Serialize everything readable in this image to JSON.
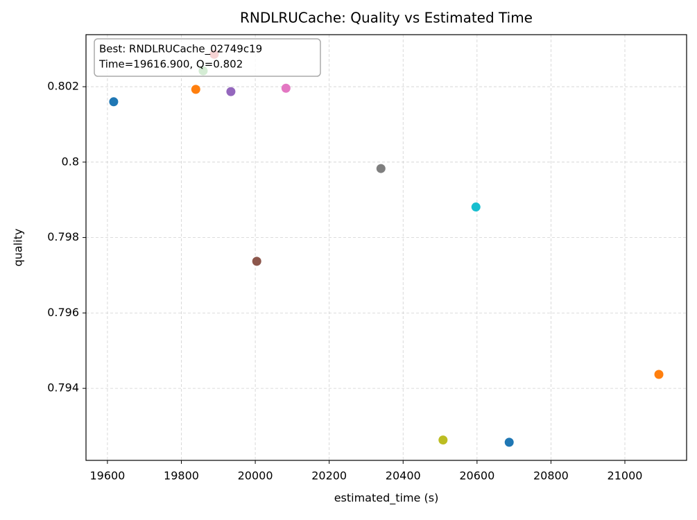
{
  "chart_data": {
    "type": "scatter",
    "title": "RNDLRUCache: Quality vs Estimated Time",
    "x_label": "estimated_time (s)",
    "y_label": "quality",
    "x": [
      19616.9,
      19839,
      19859,
      19889,
      19934,
      20004,
      20083,
      20340,
      20508,
      20597,
      20687,
      21092
    ],
    "y": [
      0.8016,
      0.80193,
      0.80242,
      0.80286,
      0.80187,
      0.79737,
      0.80196,
      0.79983,
      0.79263,
      0.79881,
      0.79257,
      0.79437
    ],
    "colors": [
      "#1f77b4",
      "#ff7f0e",
      "#2ca02c",
      "#d62728",
      "#9467bd",
      "#8c564b",
      "#e377c2",
      "#7f7f7f",
      "#bcbd22",
      "#17becf",
      "#1f77b4",
      "#ff7f0e"
    ],
    "xlim": [
      19542,
      21167
    ],
    "ylim": [
      0.79209,
      0.80338
    ],
    "xticks": [
      19600,
      19800,
      20000,
      20200,
      20400,
      20600,
      20800,
      21000
    ],
    "yticks": [
      0.794,
      0.796,
      0.798,
      0.8,
      0.802
    ],
    "grid": true,
    "annotation": [
      "Best: RNDLRUCache_02749c19",
      "Time=19616.900, Q=0.802"
    ],
    "annotation_corner": "upper left"
  }
}
